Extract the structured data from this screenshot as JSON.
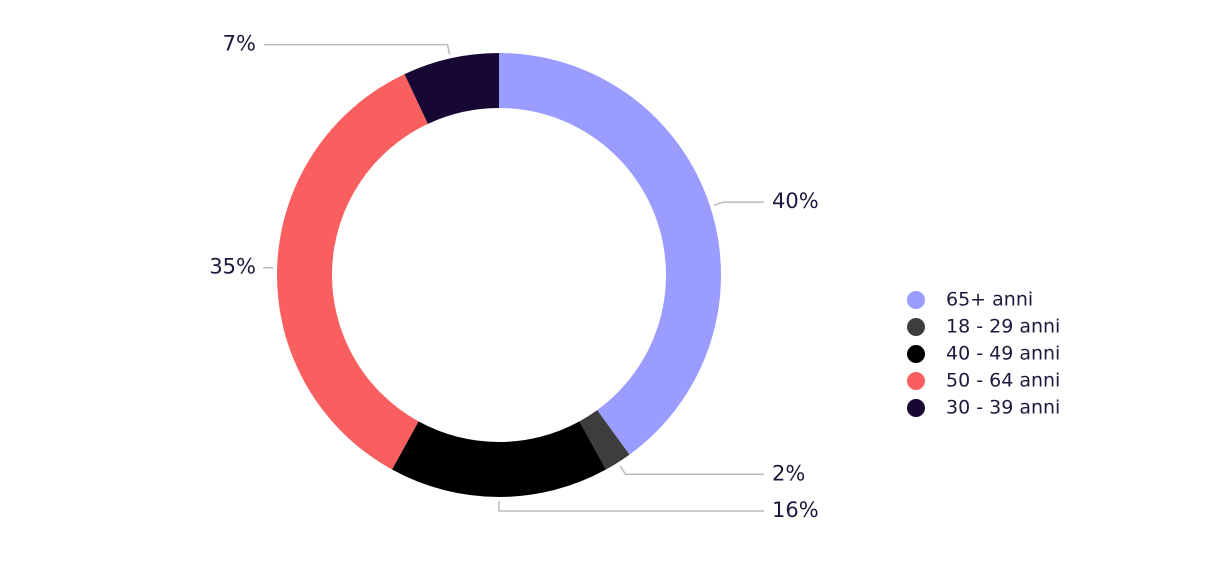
{
  "chart_data": {
    "type": "donut",
    "categories": [
      "65+ anni",
      "18 - 29 anni",
      "40 - 49 anni",
      "50 - 64 anni",
      "30 - 39 anni"
    ],
    "values": [
      40,
      2,
      16,
      35,
      7
    ],
    "value_labels": [
      "40%",
      "2%",
      "16%",
      "35%",
      "7%"
    ],
    "colors": [
      "#9a9cff",
      "#3d3d3d",
      "#000000",
      "#f95f5f",
      "#160832"
    ],
    "legend": "right"
  }
}
